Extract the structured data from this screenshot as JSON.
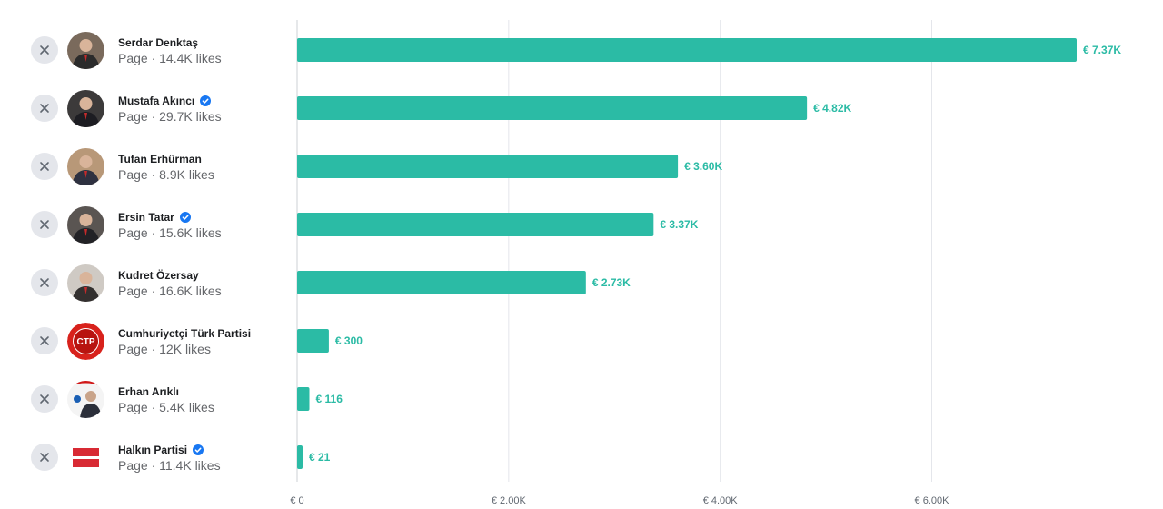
{
  "pages": [
    {
      "name": "Serdar Denktaş",
      "meta": "Page · 14.4K likes",
      "verified": false,
      "avatar": "portrait-avatar"
    },
    {
      "name": "Mustafa Akıncı",
      "meta": "Page · 29.7K likes",
      "verified": true,
      "avatar": "portrait-avatar"
    },
    {
      "name": "Tufan Erhürman",
      "meta": "Page · 8.9K likes",
      "verified": false,
      "avatar": "portrait-avatar"
    },
    {
      "name": "Ersin Tatar",
      "meta": "Page · 15.6K likes",
      "verified": true,
      "avatar": "portrait-avatar"
    },
    {
      "name": "Kudret Özersay",
      "meta": "Page · 16.6K likes",
      "verified": false,
      "avatar": "portrait-avatar"
    },
    {
      "name": "Cumhuriyetçi Türk Partisi",
      "meta": "Page · 12K likes",
      "verified": false,
      "avatar": "ctp-logo",
      "logo_text": "CTP"
    },
    {
      "name": "Erhan Arıklı",
      "meta": "Page · 5.4K likes",
      "verified": false,
      "avatar": "party-logo-portrait"
    },
    {
      "name": "Halkın Partisi",
      "meta": "Page · 11.4K likes",
      "verified": true,
      "avatar": "hp-flag-logo"
    }
  ],
  "chart_data": {
    "type": "bar",
    "orientation": "horizontal",
    "currency": "€",
    "categories": [
      "Serdar Denktaş",
      "Mustafa Akıncı",
      "Tufan Erhürman",
      "Ersin Tatar",
      "Kudret Özersay",
      "Cumhuriyetçi Türk Partisi",
      "Erhan Arıklı",
      "Halkın Partisi"
    ],
    "values": [
      7370,
      4820,
      3600,
      3370,
      2730,
      300,
      116,
      21
    ],
    "value_labels": [
      "€ 7.37K",
      "€ 4.82K",
      "€ 3.60K",
      "€ 3.37K",
      "€ 2.73K",
      "€ 300",
      "€ 116",
      "€ 21"
    ],
    "xlim": [
      0,
      7370
    ],
    "x_ticks": [
      0,
      2000,
      4000,
      6000
    ],
    "x_tick_labels": [
      "€ 0",
      "€ 2.00K",
      "€ 4.00K",
      "€ 6.00K"
    ],
    "grid": true,
    "colors": {
      "bar": "#2bbba5",
      "label": "#2bbba5",
      "grid": "#e4e6eb"
    }
  },
  "icons": {
    "remove": "close-icon",
    "verified": "verified-badge-icon"
  }
}
